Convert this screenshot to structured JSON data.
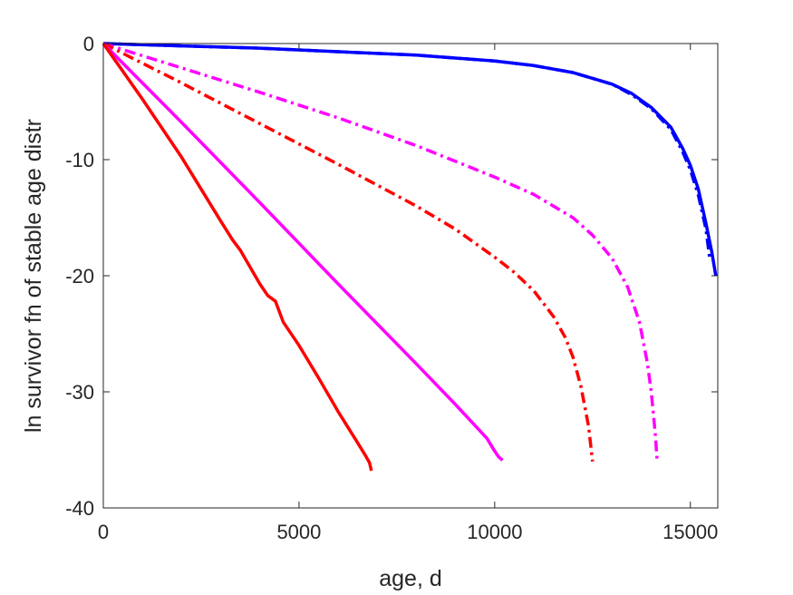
{
  "chart_data": {
    "type": "line",
    "xlabel": "age, d",
    "ylabel": "ln survivor fn of stable age distr",
    "xlim": [
      0,
      15700
    ],
    "ylim": [
      -40,
      0
    ],
    "xticks": [
      0,
      5000,
      10000,
      15000
    ],
    "yticks": [
      0,
      -10,
      -20,
      -30,
      -40
    ],
    "xtick_labels": [
      "0",
      "5000",
      "10000",
      "15000"
    ],
    "ytick_labels": [
      "0",
      "-10",
      "-20",
      "-30",
      "-40"
    ],
    "grid": false,
    "series": [
      {
        "color": "#0000ff",
        "style": "solid",
        "x": [
          0,
          2000,
          4000,
          6000,
          8000,
          10000,
          11000,
          12000,
          13000,
          13500,
          14000,
          14500,
          14800,
          15000,
          15200,
          15400,
          15550,
          15650
        ],
        "y": [
          0,
          -0.2,
          -0.4,
          -0.7,
          -1.0,
          -1.5,
          -1.9,
          -2.5,
          -3.5,
          -4.3,
          -5.5,
          -7.2,
          -9.0,
          -10.5,
          -12.5,
          -15.5,
          -18.0,
          -20.0
        ]
      },
      {
        "color": "#0000ff",
        "style": "dashdot",
        "x": [
          0,
          2000,
          4000,
          6000,
          8000,
          10000,
          11000,
          12000,
          13000,
          13500,
          14000,
          14500,
          14800,
          15000,
          15200,
          15400,
          15500
        ],
        "y": [
          0,
          -0.2,
          -0.4,
          -0.7,
          -1.0,
          -1.5,
          -1.9,
          -2.5,
          -3.5,
          -4.4,
          -5.6,
          -7.4,
          -9.3,
          -10.9,
          -13.0,
          -16.0,
          -18.7
        ]
      },
      {
        "color": "#ff00ff",
        "style": "dashdot",
        "x": [
          0,
          2000,
          4000,
          6000,
          8000,
          10000,
          11000,
          12000,
          12500,
          13000,
          13400,
          13700,
          13900,
          14000,
          14100,
          14150
        ],
        "y": [
          0,
          -2.1,
          -4.2,
          -6.4,
          -8.8,
          -11.5,
          -13.0,
          -15.0,
          -16.5,
          -18.5,
          -21.0,
          -24.0,
          -27.5,
          -30.0,
          -33.5,
          -35.9
        ]
      },
      {
        "color": "#ff0000",
        "style": "dashdot",
        "x": [
          0,
          2000,
          4000,
          6000,
          8000,
          9000,
          10000,
          10500,
          11000,
          11500,
          11800,
          12000,
          12200,
          12400,
          12500
        ],
        "y": [
          0,
          -3.4,
          -6.9,
          -10.4,
          -14.0,
          -16.0,
          -18.4,
          -19.7,
          -21.3,
          -23.5,
          -25.3,
          -27.0,
          -29.5,
          -33.0,
          -36.0
        ]
      },
      {
        "color": "#ff00ff",
        "style": "solid",
        "x": [
          0,
          2000,
          4000,
          6000,
          8000,
          9000,
          9800,
          10000,
          10100,
          10200
        ],
        "y": [
          0,
          -6.8,
          -13.7,
          -20.7,
          -27.6,
          -31.1,
          -34.0,
          -35.1,
          -35.6,
          -35.9
        ]
      },
      {
        "color": "#ff0000",
        "style": "solid",
        "x": [
          0,
          1000,
          2000,
          3000,
          3300,
          3500,
          4000,
          4200,
          4400,
          4600,
          5000,
          5500,
          6000,
          6500,
          6700,
          6800,
          6850
        ],
        "y": [
          0,
          -4.8,
          -9.8,
          -15.3,
          -16.9,
          -17.8,
          -20.7,
          -21.7,
          -22.2,
          -24.0,
          -26.0,
          -28.8,
          -31.7,
          -34.4,
          -35.5,
          -36.1,
          -36.8
        ]
      }
    ]
  }
}
